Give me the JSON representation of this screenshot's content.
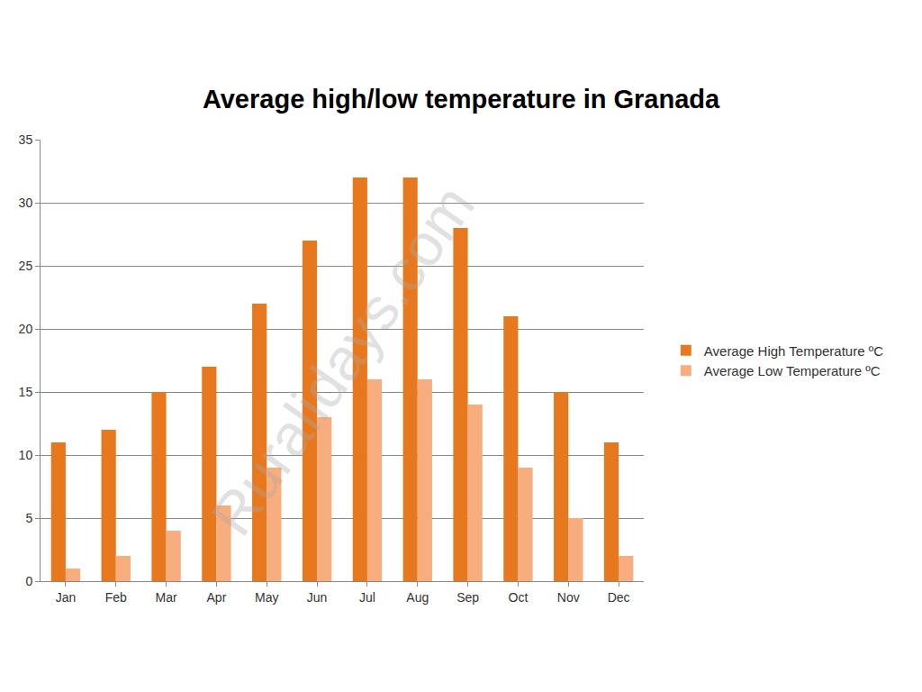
{
  "chart_data": {
    "type": "bar",
    "title": "Average high/low temperature in Granada",
    "categories": [
      "Jan",
      "Feb",
      "Mar",
      "Apr",
      "May",
      "Jun",
      "Jul",
      "Aug",
      "Sep",
      "Oct",
      "Nov",
      "Dec"
    ],
    "series": [
      {
        "name": "Average High Temperature ºC",
        "color": "#e8781e",
        "values": [
          11,
          12,
          15,
          17,
          22,
          27,
          32,
          32,
          28,
          21,
          15,
          11
        ]
      },
      {
        "name": "Average Low Temperature ºC",
        "color": "#f7ad7e",
        "values": [
          1,
          2,
          4,
          6,
          9,
          13,
          16,
          16,
          14,
          9,
          5,
          2
        ]
      }
    ],
    "ylim": [
      0,
      35
    ],
    "yticks": [
      0,
      5,
      10,
      15,
      20,
      25,
      30,
      35
    ],
    "grid": true,
    "legend": "right",
    "annotations": [
      "Ruralidays.com"
    ]
  }
}
